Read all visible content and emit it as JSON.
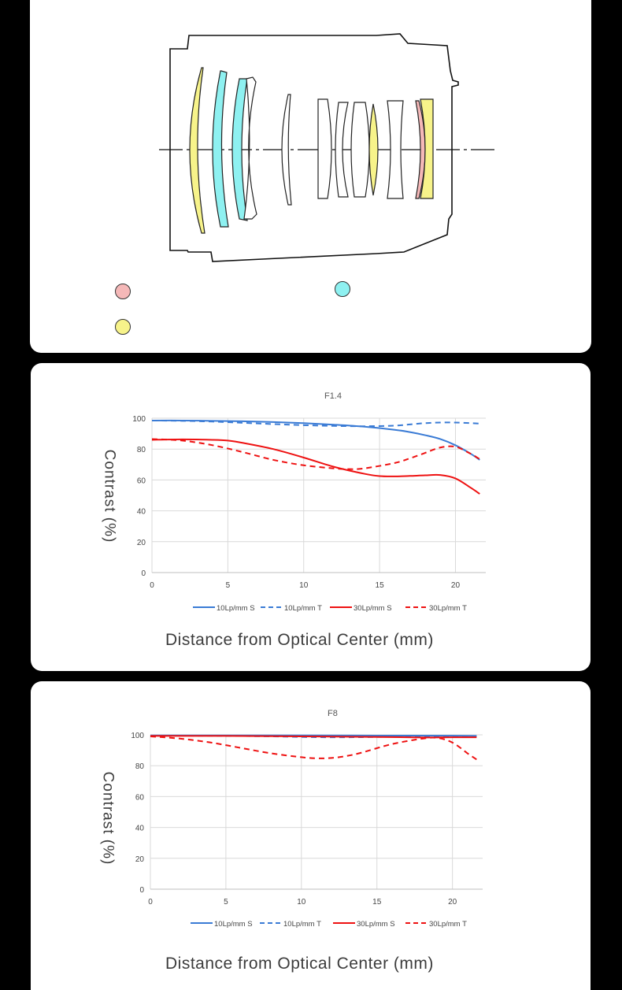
{
  "lens_diagram": {
    "colors": {
      "ed": "#f5b8b8",
      "hr": "#8ef1f1",
      "asph": "#f7f38a"
    },
    "legend_dots": [
      "low-dispersion-dot",
      "high-refraction-dot",
      "aspherical-dot"
    ]
  },
  "chart_data": [
    {
      "type": "line",
      "title": "F1.4",
      "xlabel": "Distance from Optical Center (mm)",
      "ylabel": "Contrast (%)",
      "xlim": [
        0,
        22
      ],
      "ylim": [
        0,
        100
      ],
      "xticks": [
        0,
        5,
        10,
        15,
        20
      ],
      "yticks": [
        0,
        20,
        40,
        60,
        80,
        100
      ],
      "grid": true,
      "legend_position": "bottom",
      "series": [
        {
          "name": "10Lp/mm S",
          "color": "#3a7bd5",
          "dash": false,
          "x": [
            0,
            2,
            4,
            6,
            8,
            10,
            12,
            14,
            16,
            17,
            18,
            19,
            20,
            21,
            21.6
          ],
          "y": [
            98.5,
            98.5,
            98.3,
            98,
            97.5,
            96.8,
            95.8,
            94.5,
            92.5,
            91,
            89,
            86.5,
            82.5,
            77,
            73
          ]
        },
        {
          "name": "10Lp/mm T",
          "color": "#3a7bd5",
          "dash": true,
          "x": [
            0,
            2,
            4,
            6,
            8,
            10,
            12,
            14,
            16,
            17,
            18,
            19,
            20,
            21,
            21.6
          ],
          "y": [
            98.5,
            98.3,
            97.8,
            97,
            96.2,
            95.5,
            95,
            94.8,
            95.2,
            96,
            96.8,
            97.2,
            97.2,
            96.8,
            96.5
          ]
        },
        {
          "name": "30Lp/mm S",
          "color": "#ee1111",
          "dash": false,
          "x": [
            0,
            2,
            4,
            5,
            6,
            8,
            10,
            12,
            14,
            15,
            16,
            17,
            18,
            19,
            20,
            21,
            21.6
          ],
          "y": [
            86,
            86.3,
            86,
            85.5,
            84,
            80,
            74.5,
            68.5,
            64,
            62.5,
            62.3,
            62.6,
            63,
            63.2,
            61,
            55,
            51
          ]
        },
        {
          "name": "30Lp/mm T",
          "color": "#ee1111",
          "dash": true,
          "x": [
            0,
            2,
            4,
            6,
            8,
            10,
            12,
            13,
            14,
            16,
            17,
            18,
            19,
            20,
            21,
            21.6
          ],
          "y": [
            86.5,
            85.5,
            82.5,
            78,
            73,
            69.5,
            67.5,
            67,
            67.5,
            71,
            74,
            77.5,
            81,
            81.5,
            77,
            73.5
          ]
        }
      ]
    },
    {
      "type": "line",
      "title": "F8",
      "xlabel": "Distance from Optical Center (mm)",
      "ylabel": "Contrast (%)",
      "xlim": [
        0,
        22
      ],
      "ylim": [
        0,
        100
      ],
      "xticks": [
        0,
        5,
        10,
        15,
        20
      ],
      "yticks": [
        0,
        20,
        40,
        60,
        80,
        100
      ],
      "grid": true,
      "legend_position": "bottom",
      "series": [
        {
          "name": "10Lp/mm S",
          "color": "#3a7bd5",
          "dash": false,
          "x": [
            0,
            5,
            10,
            15,
            20,
            21.6
          ],
          "y": [
            99.6,
            99.6,
            99.6,
            99.5,
            99.4,
            99.3
          ]
        },
        {
          "name": "10Lp/mm T",
          "color": "#3a7bd5",
          "dash": true,
          "x": [
            0,
            4,
            8,
            10,
            12,
            14,
            16,
            18,
            20,
            21.6
          ],
          "y": [
            99.5,
            99.4,
            99,
            98.6,
            98.4,
            98.5,
            98.8,
            99,
            99.1,
            99.1
          ]
        },
        {
          "name": "30Lp/mm S",
          "color": "#ee1111",
          "dash": false,
          "x": [
            0,
            5,
            10,
            15,
            18,
            20,
            21.6
          ],
          "y": [
            99.3,
            99.3,
            99,
            98.6,
            98.3,
            98.4,
            98.4
          ]
        },
        {
          "name": "30Lp/mm T",
          "color": "#ee1111",
          "dash": true,
          "x": [
            0,
            2,
            4,
            6,
            8,
            10,
            11,
            12,
            13,
            14,
            16,
            18,
            19,
            20,
            21,
            21.6
          ],
          "y": [
            99,
            97.5,
            95,
            91.5,
            88,
            85.5,
            84.8,
            85,
            86.3,
            88.5,
            94,
            97.5,
            98,
            95,
            88,
            84
          ]
        }
      ]
    }
  ]
}
